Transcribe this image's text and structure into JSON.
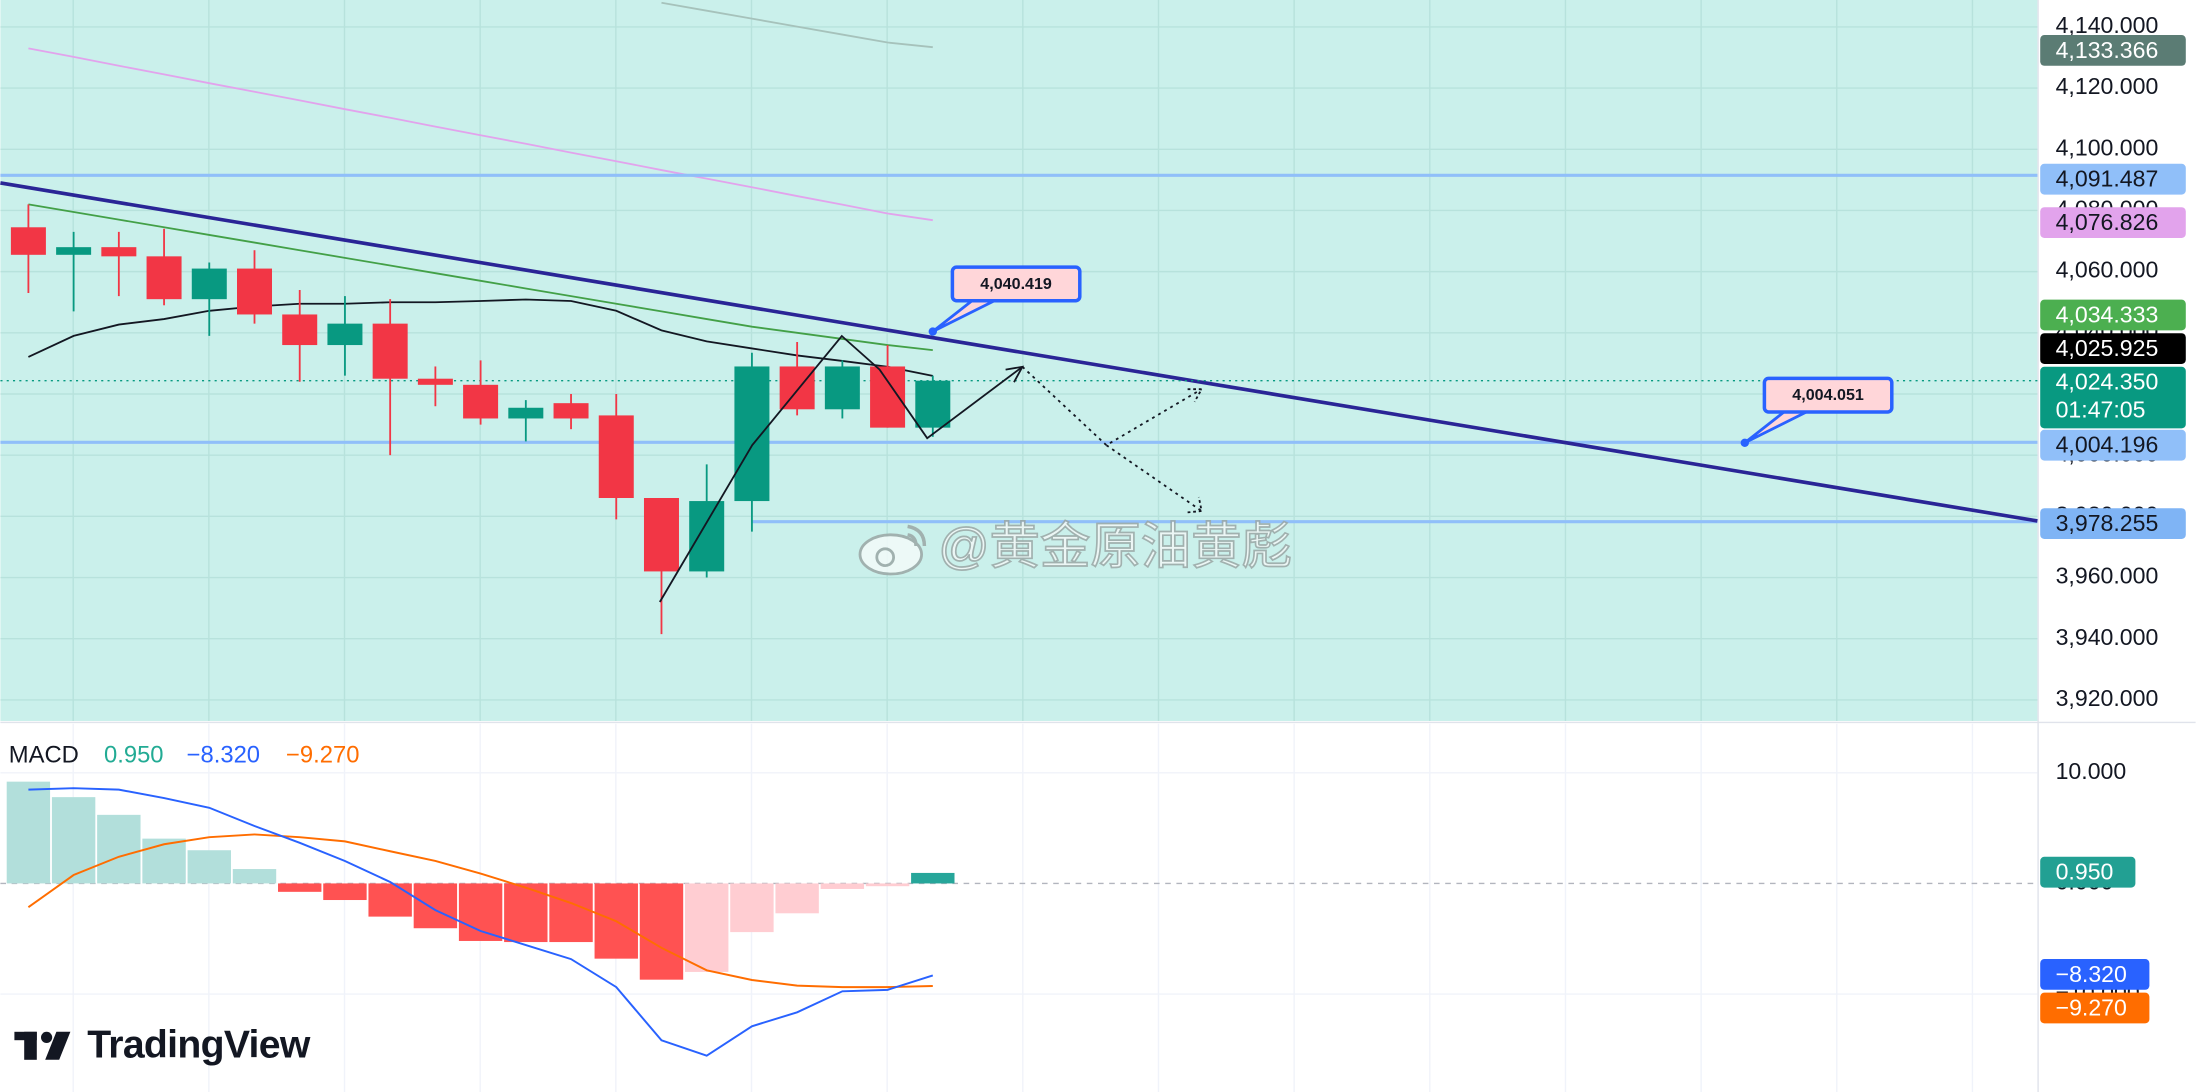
{
  "chart_data": [
    {
      "type": "candlestick",
      "categories": [
        null,
        null,
        null,
        null,
        null,
        null,
        null,
        null,
        null,
        null,
        null,
        null,
        null,
        null,
        null,
        null,
        null,
        null,
        null,
        null,
        null
      ],
      "open": [
        4074.5,
        4065.5,
        4068,
        4065,
        4051,
        4061,
        4046,
        4036,
        4043,
        4025,
        4023,
        4012,
        4017,
        4013,
        3986,
        3962,
        3985,
        4029,
        4015,
        4029,
        4009
      ],
      "high": [
        4082,
        4073,
        4073,
        4074,
        4063,
        4067,
        4054,
        4052,
        4051,
        4029,
        4031,
        4018,
        4020,
        4020,
        3986,
        3997,
        4033.5,
        4037,
        4031,
        4036,
        4026
      ],
      "low": [
        4053,
        4047,
        4052,
        4049,
        4039,
        4043,
        4024,
        4026,
        4000,
        4016,
        4010,
        4004.5,
        4008.5,
        3979,
        3941.5,
        3960,
        3975,
        4013,
        4012,
        4009,
        4006
      ],
      "close": [
        4065.5,
        4068,
        4065,
        4051,
        4061,
        4046,
        4036,
        4043,
        4025,
        4023,
        4012,
        4015.5,
        4012,
        3986,
        3962,
        3985,
        4029,
        4015,
        4029,
        4009,
        4024.35
      ],
      "up_color": "#089981",
      "down_color": "#f23645",
      "ylim": [
        3913.1,
        4148.8
      ],
      "yticks": [
        {
          "value": 4140,
          "label": "4,140.000"
        },
        {
          "value": 4120,
          "label": "4,120.000"
        },
        {
          "value": 4100,
          "label": "4,100.000"
        },
        {
          "value": 4080,
          "label": "4,080.000"
        },
        {
          "value": 4060,
          "label": "4,060.000"
        },
        {
          "value": 4040,
          "label": "4,040.000"
        },
        {
          "value": 4020,
          "label": "4,020.000"
        },
        {
          "value": 4000,
          "label": "4,000.000"
        },
        {
          "value": 3980,
          "label": "3,980.000"
        },
        {
          "value": 3960,
          "label": "3,960.000"
        },
        {
          "value": 3940,
          "label": "3,940.000"
        },
        {
          "value": 3920,
          "label": "3,920.000"
        }
      ],
      "lines": [
        {
          "color": "#a6c2bb",
          "label_color": "#5b7c74",
          "last_label": "4,133.366",
          "values": [
            null,
            null,
            null,
            null,
            null,
            null,
            null,
            null,
            null,
            null,
            null,
            null,
            null,
            null,
            4147.9,
            4145.3,
            4142.7,
            4140.1,
            4137.5,
            4134.9,
            4133.366
          ]
        },
        {
          "color": "#e2a3ec",
          "label_color": "#e2a3ec",
          "last_label": "4,076.826",
          "values": [
            4133,
            4130.2,
            4127.3,
            4124.5,
            4121.6,
            4118.8,
            4116,
            4113.1,
            4110.3,
            4107.4,
            4104.6,
            4101.8,
            4098.9,
            4096.1,
            4093.2,
            4090.4,
            4087.6,
            4084.7,
            4081.9,
            4079,
            4076.826
          ]
        },
        {
          "color": "#43a047",
          "label_color": "#4caf50",
          "last_label": "4,034.333",
          "values": [
            4082,
            4079.5,
            4077,
            4074.5,
            4072,
            4069.5,
            4067,
            4064.5,
            4062,
            4059.5,
            4057,
            4054.5,
            4052,
            4049.5,
            4047,
            4044.5,
            4042,
            4040,
            4038,
            4036,
            4034.333
          ]
        },
        {
          "color": "#131722",
          "label_color": "#000000",
          "last_label": "4,025.925",
          "values": [
            4032.1,
            4039.0,
            4042.7,
            4044.5,
            4047.2,
            4048.6,
            4049.5,
            4049.5,
            4050.0,
            4050.0,
            4050.4,
            4050.9,
            4050.4,
            4047.2,
            4040.8,
            4037.2,
            4034.9,
            4032.6,
            4030.8,
            4028.9,
            4025.925
          ]
        }
      ],
      "hlines": [
        {
          "value": 4091.487,
          "label": "4,091.487",
          "color": "#90bff9"
        },
        {
          "value": 4004.196,
          "label": "4,004.196",
          "color": "#90bff9"
        },
        {
          "value": 3978.255,
          "label": "3,978.255",
          "color": "#90bff9"
        }
      ],
      "trendline": {
        "values": [
          4089.0,
          3978.5
        ],
        "color": "#2a2596"
      },
      "callouts": [
        {
          "value": 4040.419,
          "label": "4,040.419"
        },
        {
          "value": 4004.051,
          "label": "4,004.051"
        }
      ],
      "last_price": {
        "value": 4024.35,
        "label": "4,024.350",
        "countdown": "01:47:05",
        "color": "#089981"
      }
    },
    {
      "type": "macd",
      "title": "MACD",
      "legend": [
        {
          "value": 0.95,
          "label": "0.950",
          "color": "#22ab94"
        },
        {
          "value": -8.32,
          "label": "−8.320",
          "color": "#2962ff"
        },
        {
          "value": -9.27,
          "label": "−9.270",
          "color": "#ff6d00"
        }
      ],
      "histogram": [
        9.2,
        7.8,
        6.2,
        4.05,
        3.0,
        1.3,
        -0.76,
        -1.5,
        -3.0,
        -4.05,
        -5.2,
        -5.3,
        -5.3,
        -6.8,
        -8.7,
        -8.0,
        -4.4,
        -2.7,
        -0.5,
        -0.25,
        0.95
      ],
      "histogram_colors": {
        "up_rising": "#26a69a",
        "up_falling": "#b2dfdb",
        "down_falling": "#ff5252",
        "down_rising": "#ffcdd2"
      },
      "macd": [
        8.48,
        8.61,
        8.48,
        7.72,
        6.84,
        5.19,
        3.67,
        2.03,
        0.13,
        -2.41,
        -4.3,
        -5.57,
        -6.84,
        -9.37,
        -14.18,
        -15.57,
        -12.91,
        -11.65,
        -9.75,
        -9.62,
        -8.32
      ],
      "signal": [
        -2.15,
        0.76,
        2.41,
        3.54,
        4.18,
        4.43,
        4.18,
        3.8,
        2.91,
        2.03,
        0.89,
        -0.38,
        -1.77,
        -3.42,
        -5.82,
        -7.85,
        -8.73,
        -9.24,
        -9.37,
        -9.37,
        -9.27
      ],
      "ylim": [
        -18.6,
        14.05
      ],
      "yticks": [
        {
          "value": 10,
          "label": "10.000"
        },
        {
          "value": 0,
          "label": "0.000"
        },
        {
          "value": -10,
          "label": "−10.000"
        }
      ]
    }
  ],
  "watermark": "@黄金原油黄彪",
  "brand": "TradingView"
}
